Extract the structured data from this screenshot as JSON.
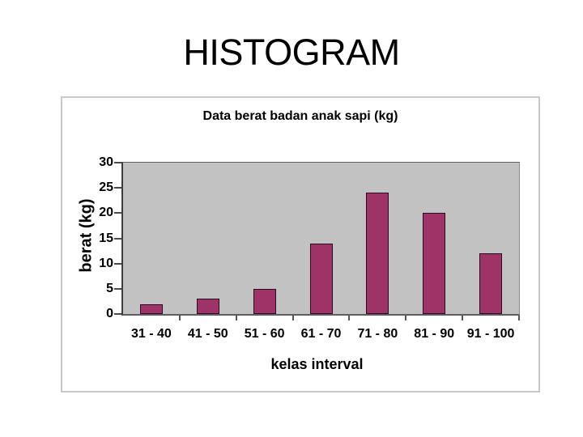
{
  "slide": {
    "title": "HISTOGRAM"
  },
  "chart_data": {
    "type": "bar",
    "title": "Data berat badan anak sapi (kg)",
    "categories": [
      "31 - 40",
      "41 - 50",
      "51 - 60",
      "61 - 70",
      "71 - 80",
      "81 - 90",
      "91 - 100"
    ],
    "values": [
      2,
      3,
      5,
      14,
      24,
      20,
      12
    ],
    "xlabel": "kelas interval",
    "ylabel": "berat (kg)",
    "ylim": [
      0,
      30
    ],
    "yticks": [
      0,
      5,
      10,
      15,
      20,
      25,
      30
    ],
    "grid": false,
    "legend": false,
    "colors": {
      "bar_fill": "#9d3366",
      "bar_border": "#2b0b20",
      "plot_background": "#c2c2c2",
      "axis_line": "#3c3c3c",
      "panel_border": "#c7c7c7",
      "text": "#000000"
    }
  }
}
